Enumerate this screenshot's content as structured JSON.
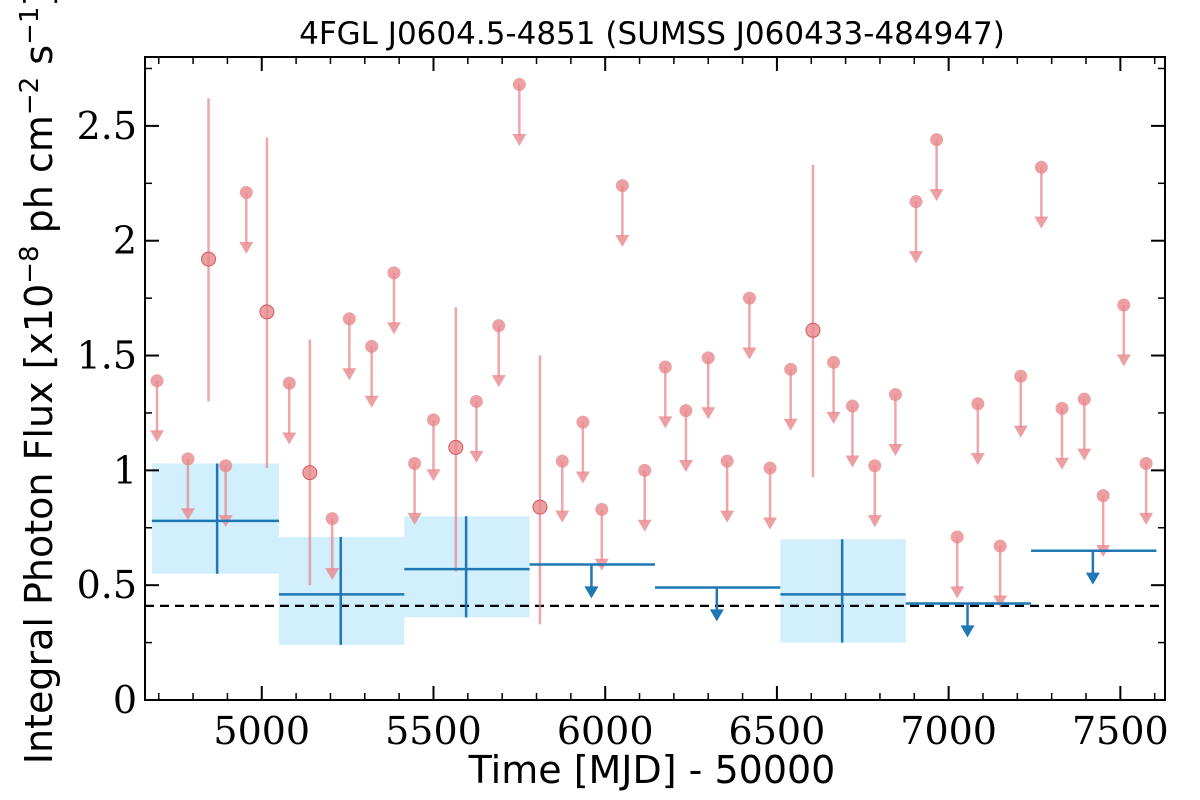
{
  "chart_data": {
    "type": "scatter",
    "title": "4FGL J0604.5-4851 (SUMSS J060433-484947)",
    "xlabel": "Time [MJD] - 50000",
    "ylabel_parts": {
      "prefix": "Integral Photon Flux [x10",
      "exp1": "−8",
      "mid1": " ph cm",
      "exp2": "−2",
      "mid2": " s",
      "exp3": "−1",
      "suffix": "]"
    },
    "xlim": [
      4660,
      7630
    ],
    "ylim": [
      0,
      2.8
    ],
    "xticks": [
      {
        "value": 5000,
        "label": "5000"
      },
      {
        "value": 5500,
        "label": "5500"
      },
      {
        "value": 6000,
        "label": "6000"
      },
      {
        "value": 6500,
        "label": "6500"
      },
      {
        "value": 7000,
        "label": "7000"
      },
      {
        "value": 7500,
        "label": "7500"
      }
    ],
    "yticks": [
      {
        "value": 0,
        "label": "0"
      },
      {
        "value": 0.5,
        "label": "0.5"
      },
      {
        "value": 1,
        "label": "1"
      },
      {
        "value": 1.5,
        "label": "1.5"
      },
      {
        "value": 2,
        "label": "2"
      },
      {
        "value": 2.5,
        "label": "2.5"
      }
    ],
    "reference_line": {
      "y": 0.41,
      "style": "dashed",
      "color": "#000000"
    },
    "colors": {
      "short_points": "#e8888c",
      "long_bins": "#1f77b4",
      "error_boxes": "#bde8fb"
    },
    "short_detections": [
      {
        "x": 4845,
        "y": 1.92,
        "ylo": 1.3,
        "yhi": 2.62
      },
      {
        "x": 5015,
        "y": 1.69,
        "ylo": 1.01,
        "yhi": 2.45
      },
      {
        "x": 5140,
        "y": 0.99,
        "ylo": 0.5,
        "yhi": 1.57
      },
      {
        "x": 5565,
        "y": 1.1,
        "ylo": 0.56,
        "yhi": 1.71
      },
      {
        "x": 5810,
        "y": 0.84,
        "ylo": 0.33,
        "yhi": 1.5
      },
      {
        "x": 6605,
        "y": 1.61,
        "ylo": 0.97,
        "yhi": 2.33
      }
    ],
    "short_upper_limits": [
      {
        "x": 4695,
        "y": 1.39
      },
      {
        "x": 4785,
        "y": 1.05
      },
      {
        "x": 4895,
        "y": 1.02
      },
      {
        "x": 4955,
        "y": 2.21
      },
      {
        "x": 5080,
        "y": 1.38
      },
      {
        "x": 5205,
        "y": 0.79
      },
      {
        "x": 5255,
        "y": 1.66
      },
      {
        "x": 5320,
        "y": 1.54
      },
      {
        "x": 5385,
        "y": 1.86
      },
      {
        "x": 5445,
        "y": 1.03
      },
      {
        "x": 5500,
        "y": 1.22
      },
      {
        "x": 5625,
        "y": 1.3
      },
      {
        "x": 5690,
        "y": 1.63
      },
      {
        "x": 5750,
        "y": 2.68
      },
      {
        "x": 5875,
        "y": 1.04
      },
      {
        "x": 5935,
        "y": 1.21
      },
      {
        "x": 5990,
        "y": 0.83
      },
      {
        "x": 6050,
        "y": 2.24
      },
      {
        "x": 6115,
        "y": 1.0
      },
      {
        "x": 6175,
        "y": 1.45
      },
      {
        "x": 6235,
        "y": 1.26
      },
      {
        "x": 6300,
        "y": 1.49
      },
      {
        "x": 6355,
        "y": 1.04
      },
      {
        "x": 6420,
        "y": 1.75
      },
      {
        "x": 6480,
        "y": 1.01
      },
      {
        "x": 6540,
        "y": 1.44
      },
      {
        "x": 6665,
        "y": 1.47
      },
      {
        "x": 6720,
        "y": 1.28
      },
      {
        "x": 6785,
        "y": 1.02
      },
      {
        "x": 6845,
        "y": 1.33
      },
      {
        "x": 6905,
        "y": 2.17
      },
      {
        "x": 6965,
        "y": 2.44
      },
      {
        "x": 7025,
        "y": 0.71
      },
      {
        "x": 7085,
        "y": 1.29
      },
      {
        "x": 7150,
        "y": 0.67
      },
      {
        "x": 7210,
        "y": 1.41
      },
      {
        "x": 7270,
        "y": 2.32
      },
      {
        "x": 7330,
        "y": 1.27
      },
      {
        "x": 7395,
        "y": 1.31
      },
      {
        "x": 7450,
        "y": 0.89
      },
      {
        "x": 7510,
        "y": 1.72
      },
      {
        "x": 7575,
        "y": 1.03
      }
    ],
    "long_detections": [
      {
        "x": 4870,
        "x0": 4680,
        "x1": 5050,
        "y": 0.78,
        "ylo": 0.55,
        "yhi": 1.03
      },
      {
        "x": 5230,
        "x0": 5050,
        "x1": 5415,
        "y": 0.46,
        "ylo": 0.24,
        "yhi": 0.71
      },
      {
        "x": 5595,
        "x0": 5415,
        "x1": 5780,
        "y": 0.57,
        "ylo": 0.36,
        "yhi": 0.8
      },
      {
        "x": 6690,
        "x0": 6510,
        "x1": 6875,
        "y": 0.46,
        "ylo": 0.25,
        "yhi": 0.7
      }
    ],
    "long_upper_limits": [
      {
        "x": 5960,
        "x0": 5780,
        "x1": 6145,
        "y": 0.59
      },
      {
        "x": 6325,
        "x0": 6145,
        "x1": 6510,
        "y": 0.49
      },
      {
        "x": 7055,
        "x0": 6875,
        "x1": 7240,
        "y": 0.42
      },
      {
        "x": 7420,
        "x0": 7240,
        "x1": 7605,
        "y": 0.65
      }
    ]
  }
}
